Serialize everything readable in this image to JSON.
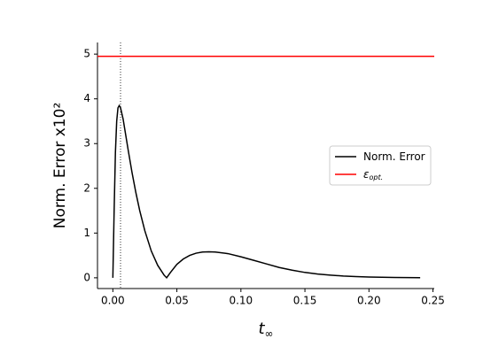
{
  "chart_data": {
    "type": "line",
    "xlabel": "t",
    "xlabel_sub": "∞",
    "ylabel": "Norm.  Error x10²",
    "xlim": [
      -0.012,
      0.251
    ],
    "ylim": [
      -0.24,
      5.26
    ],
    "xticks": [
      {
        "value": 0,
        "label": "0.00"
      },
      {
        "value": 0.05,
        "label": "0.05"
      },
      {
        "value": 0.1,
        "label": "0.10"
      },
      {
        "value": 0.15,
        "label": "0.15"
      },
      {
        "value": 0.2,
        "label": "0.20"
      },
      {
        "value": 0.25,
        "label": "0.25"
      }
    ],
    "yticks": [
      0,
      1,
      2,
      3,
      4,
      5
    ],
    "vline": 0.006,
    "series": [
      {
        "name": "Norm. Error",
        "color": "#000000",
        "x": [
          0,
          0.001,
          0.002,
          0.003,
          0.004,
          0.005,
          0.006,
          0.008,
          0.01,
          0.012,
          0.015,
          0.018,
          0.021,
          0.025,
          0.03,
          0.035,
          0.04,
          0.042,
          0.045,
          0.05,
          0.055,
          0.06,
          0.065,
          0.07,
          0.075,
          0.08,
          0.09,
          0.1,
          0.11,
          0.12,
          0.13,
          0.14,
          0.15,
          0.16,
          0.17,
          0.18,
          0.19,
          0.2,
          0.21,
          0.22,
          0.23,
          0.24
        ],
        "values": [
          0,
          1.5,
          2.8,
          3.5,
          3.8,
          3.85,
          3.8,
          3.55,
          3.2,
          2.85,
          2.35,
          1.9,
          1.5,
          1.05,
          0.6,
          0.28,
          0.06,
          0,
          0.12,
          0.3,
          0.42,
          0.5,
          0.55,
          0.575,
          0.58,
          0.575,
          0.54,
          0.47,
          0.39,
          0.31,
          0.23,
          0.17,
          0.12,
          0.085,
          0.06,
          0.04,
          0.027,
          0.018,
          0.012,
          0.008,
          0.005,
          0.003
        ]
      },
      {
        "name": "ε",
        "name_sub": "opt.",
        "color": "#ff0000",
        "value": 4.95
      }
    ]
  }
}
